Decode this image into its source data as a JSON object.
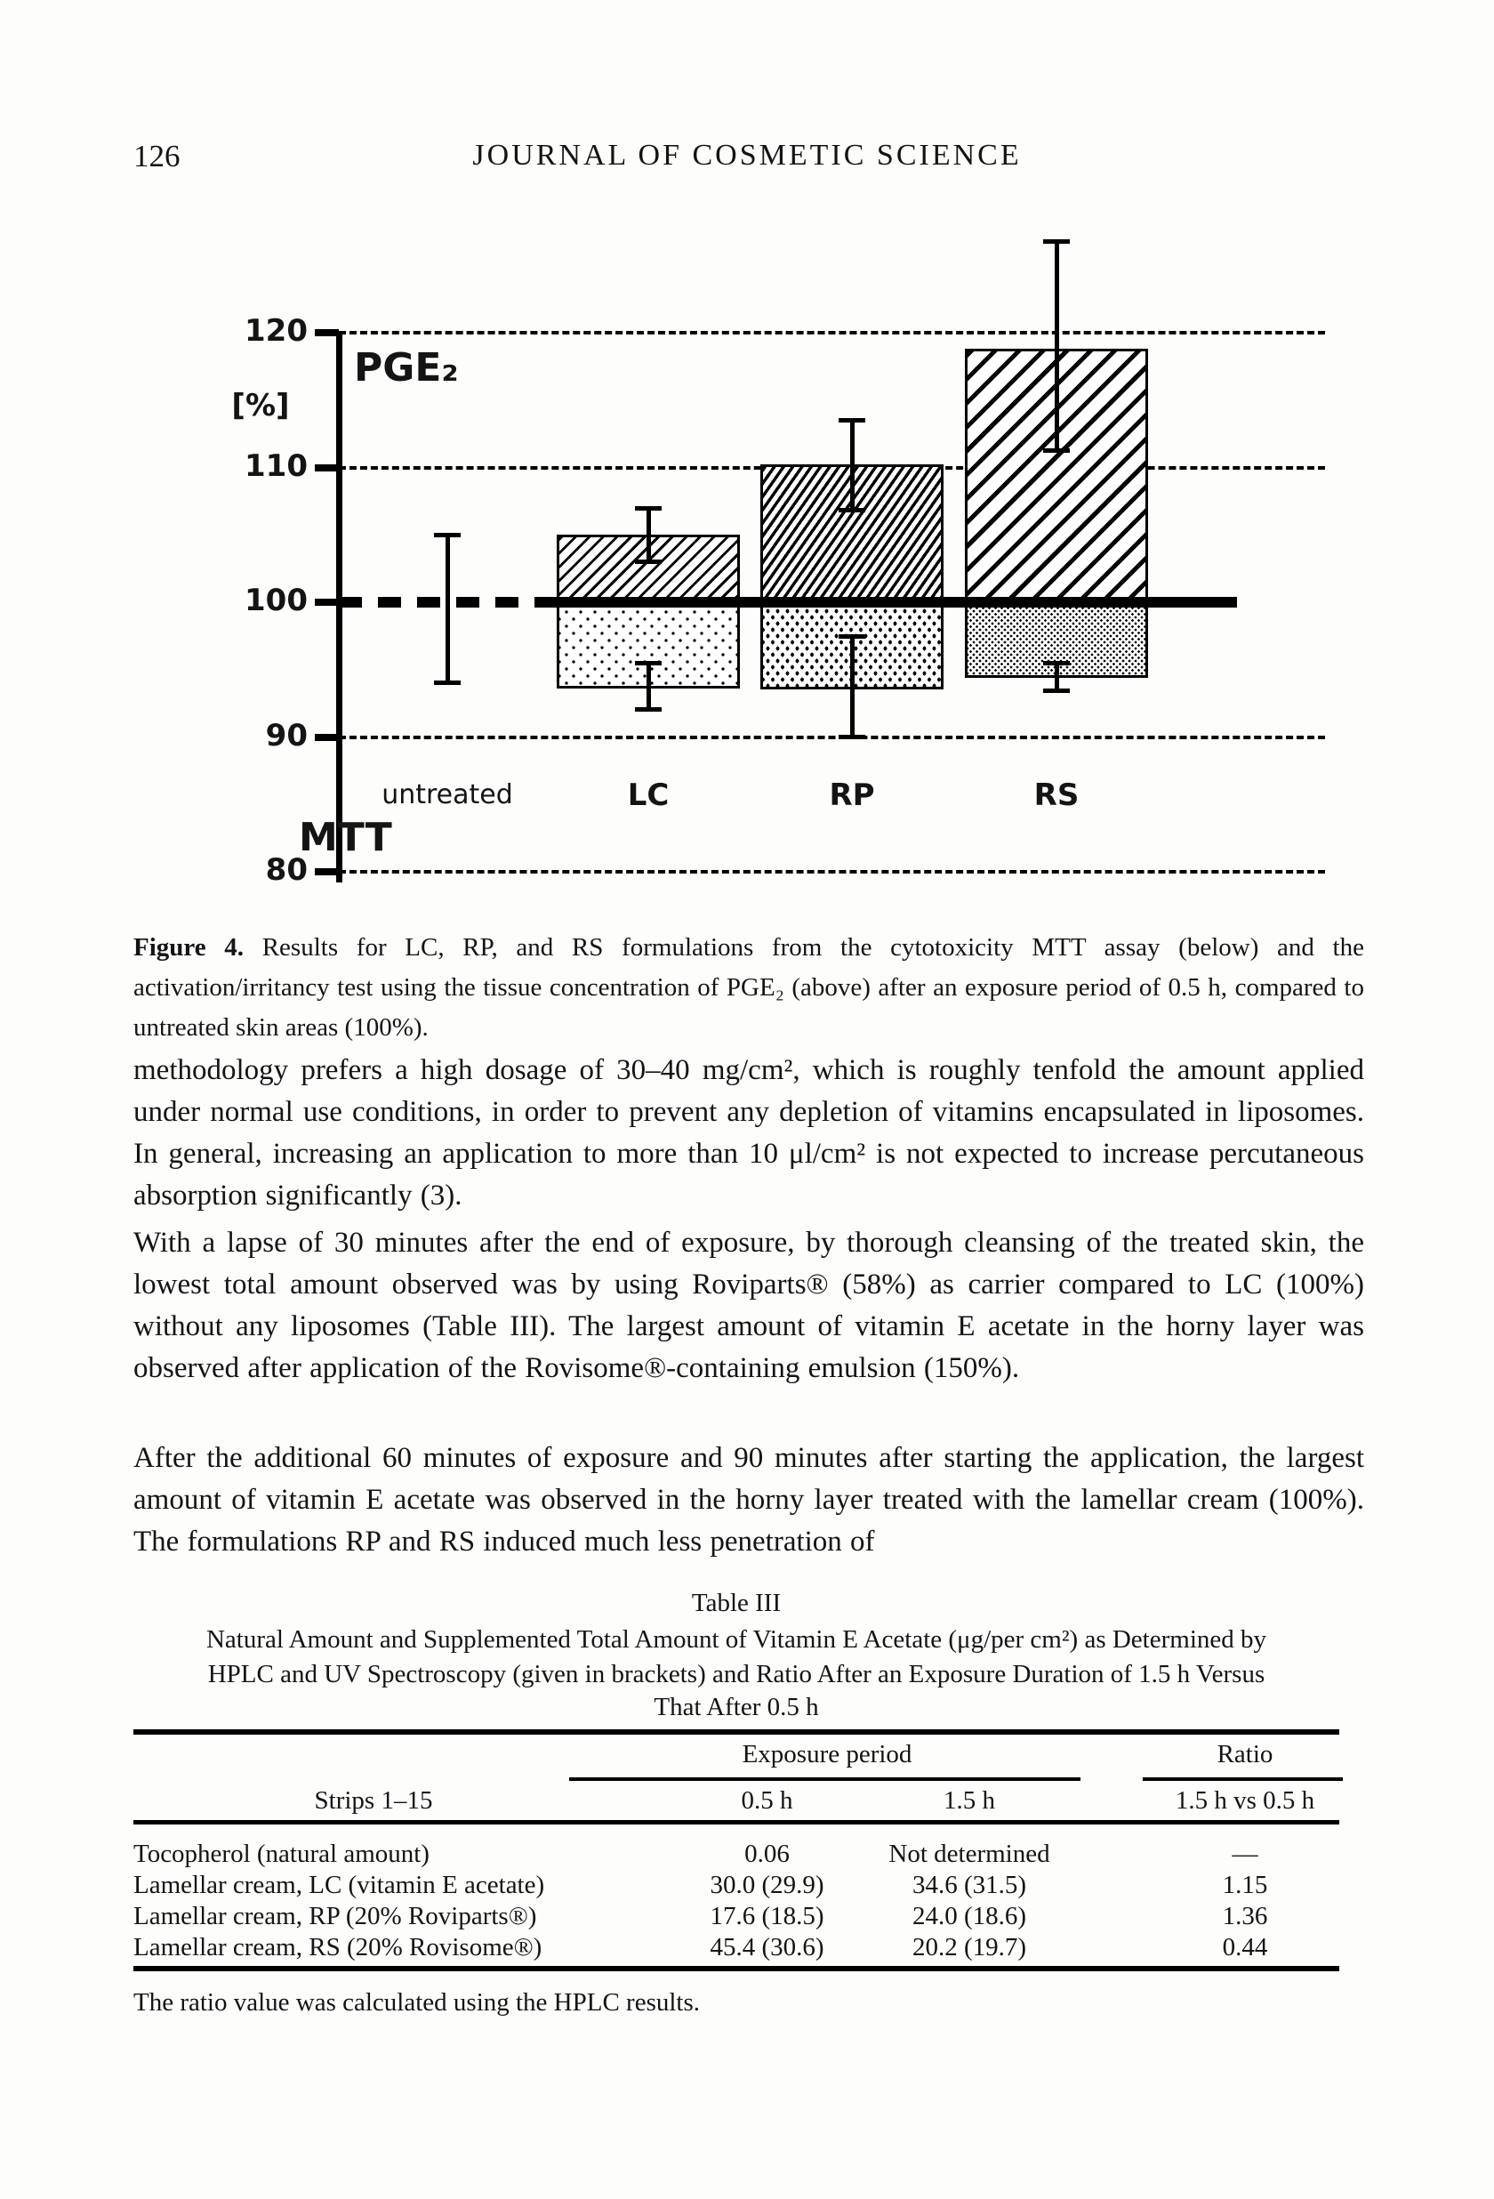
{
  "header": {
    "page_number": "126",
    "journal_title": "JOURNAL OF COSMETIC SCIENCE"
  },
  "figure": {
    "label": "Figure 4.",
    "text": "Results for LC, RP, and RS formulations from the cytotoxicity MTT assay (below) and the activation/irritancy test using the tissue concentration of PGE₂ (above) after an exposure period of 0.5 h, compared to untreated skin areas (100%)."
  },
  "chart_data": {
    "type": "bar",
    "title_top": "PGE₂",
    "title_bottom": "MTT",
    "unit_label": "[%]",
    "yticks": [
      120,
      110,
      100,
      90,
      80
    ],
    "ylim": [
      80,
      127
    ],
    "baseline": 100,
    "grid": true,
    "categories": [
      "untreated",
      "LC",
      "RP",
      "RS"
    ],
    "series": [
      {
        "key": "pge2",
        "name": "PGE₂ tissue concentration [%]",
        "values": [
          null,
          105,
          110.2,
          118.8
        ],
        "error_low": [
          94,
          103,
          106.8,
          111.2
        ],
        "error_high": [
          105,
          107,
          113.5,
          126.8
        ]
      },
      {
        "key": "mtt",
        "name": "MTT viability [%]",
        "values": [
          null,
          93.6,
          93.5,
          94.4
        ],
        "error_low": [
          null,
          92,
          90,
          93.4
        ],
        "error_high": [
          null,
          95.5,
          97.5,
          95.5
        ]
      }
    ],
    "patterns": {
      "pge2": [
        "none",
        "hatch-lc",
        "hatch-rp",
        "hatch-rs"
      ],
      "mtt": [
        "none",
        "dots-lc",
        "dots-rp",
        "dots-rs"
      ]
    },
    "note": "untreated category shows a single error bar spanning ~94-105 centered on the 100% baseline"
  },
  "paragraphs": [
    "methodology prefers a high dosage of 30–40 mg/cm², which is roughly tenfold the amount applied under normal use conditions, in order to prevent any depletion of vitamins encapsulated in liposomes. In general, increasing an application to more than 10 μl/cm² is not expected to increase percutaneous absorption significantly (3).",
    "With a lapse of 30 minutes after the end of exposure, by thorough cleansing of the treated skin, the lowest total amount observed was by using Roviparts® (58%) as carrier compared to LC (100%) without any liposomes (Table III). The largest amount of vitamin E acetate in the horny layer was observed after application of the Rovisome®-containing emulsion (150%).",
    "After the additional 60 minutes of exposure and 90 minutes after starting the application, the largest amount of vitamin E acetate was observed in the horny layer treated with the lamellar cream (100%). The formulations RP and RS induced much less penetration of"
  ],
  "table": {
    "title": "Table III",
    "caption_lines": [
      "Natural Amount and Supplemented Total Amount of Vitamin E Acetate (μg/per cm²) as Determined by",
      "HPLC and UV Spectroscopy (given in brackets) and Ratio After an Exposure Duration of 1.5 h Versus",
      "That After 0.5 h"
    ],
    "spanners": {
      "exposure": "Exposure period",
      "ratio": "Ratio"
    },
    "headers": [
      "Strips 1–15",
      "0.5 h",
      "1.5 h",
      "1.5 h vs 0.5 h"
    ],
    "rows": [
      {
        "label": "Tocopherol (natural amount)",
        "h05": "0.06",
        "h15": "Not determined",
        "ratio": "—"
      },
      {
        "label": "Lamellar cream, LC (vitamin E acetate)",
        "h05": "30.0 (29.9)",
        "h15": "34.6 (31.5)",
        "ratio": "1.15"
      },
      {
        "label": "Lamellar cream, RP (20% Roviparts®)",
        "h05": "17.6 (18.5)",
        "h15": "24.0 (18.6)",
        "ratio": "1.36"
      },
      {
        "label": "Lamellar cream, RS (20% Rovisome®)",
        "h05": "45.4 (30.6)",
        "h15": "20.2 (19.7)",
        "ratio": "0.44"
      }
    ],
    "footnote": "The ratio value was calculated using the HPLC results."
  }
}
